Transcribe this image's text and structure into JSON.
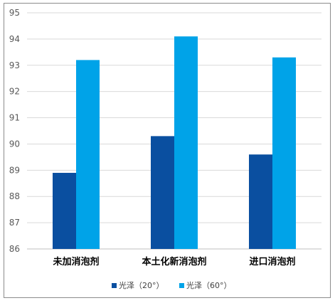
{
  "chart_data": {
    "type": "bar",
    "title": "",
    "xlabel": "",
    "ylabel": "",
    "categories": [
      "未加消泡剂",
      "本土化新消泡剂",
      "进口消泡剂"
    ],
    "series": [
      {
        "name": "光泽（20°）",
        "color": "#0a4fa0",
        "values": [
          88.9,
          90.3,
          89.6
        ]
      },
      {
        "name": "光泽（60°）",
        "color": "#00a3e8",
        "values": [
          93.2,
          94.1,
          93.3
        ]
      }
    ],
    "ylim": [
      86,
      95
    ],
    "yticks": [
      86,
      87,
      88,
      89,
      90,
      91,
      92,
      93,
      94,
      95
    ],
    "grid": true,
    "legend_position": "bottom"
  }
}
